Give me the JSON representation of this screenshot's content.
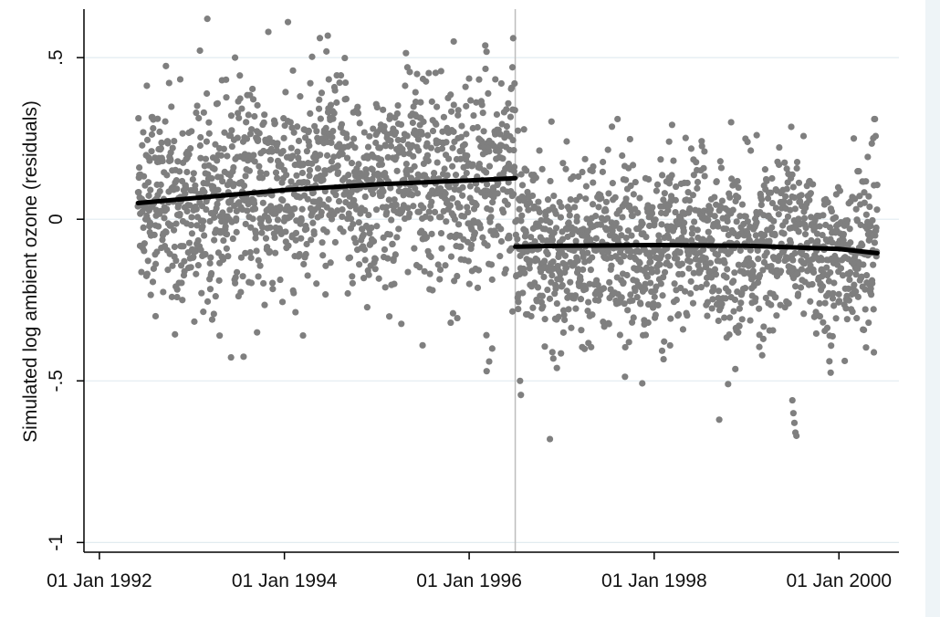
{
  "chart_data": {
    "type": "scatter",
    "title": "",
    "xlabel": "",
    "ylabel": "Simulated log ambient ozone (residuals)",
    "x_type": "date",
    "xlim": [
      "1991-11-01",
      "2000-08-25"
    ],
    "ylim": [
      -1.03,
      0.65
    ],
    "x_ticks": [
      {
        "date": "1992-01-01",
        "label": "01 Jan 1992"
      },
      {
        "date": "1994-01-01",
        "label": "01 Jan 1994"
      },
      {
        "date": "1996-01-01",
        "label": "01 Jan 1996"
      },
      {
        "date": "1998-01-01",
        "label": "01 Jan 1998"
      },
      {
        "date": "2000-01-01",
        "label": "01 Jan 2000"
      }
    ],
    "y_ticks": [
      {
        "value": 0.5,
        "label": ".5"
      },
      {
        "value": 0,
        "label": "0"
      },
      {
        "value": -0.5,
        "label": "-.5"
      },
      {
        "value": -1,
        "label": "-1"
      }
    ],
    "grid": "horizontal",
    "cutoff_date": "1996-07-01",
    "colors": {
      "points": "#7f7f7f",
      "fit": "#000000",
      "grid": "#e2ecf0",
      "cutoff": "#bdbdbd",
      "axis": "#000000"
    },
    "series": [
      {
        "type": "line",
        "points": [
          {
            "x": "1992-06-01",
            "y": 0.05
          },
          {
            "x": "1993-01-01",
            "y": 0.065
          },
          {
            "x": "1994-01-01",
            "y": 0.09
          },
          {
            "x": "1995-01-01",
            "y": 0.108
          },
          {
            "x": "1996-01-01",
            "y": 0.12
          },
          {
            "x": "1996-07-01",
            "y": 0.127
          }
        ]
      },
      {
        "type": "line",
        "points": [
          {
            "x": "1996-07-01",
            "y": -0.085
          },
          {
            "x": "1997-01-01",
            "y": -0.082
          },
          {
            "x": "1998-01-01",
            "y": -0.08
          },
          {
            "x": "1999-01-01",
            "y": -0.082
          },
          {
            "x": "2000-01-01",
            "y": -0.092
          },
          {
            "x": "2000-06-01",
            "y": -0.105
          }
        ]
      },
      {
        "type": "scatter_regime",
        "regimes": [
          {
            "x_start": "1992-06-01",
            "x_end": "1996-06-30",
            "spread": 0.16,
            "density_per_day": 0.95,
            "y_range": [
              -0.47,
              0.62
            ],
            "outliers": [
              {
                "x": "1994-01-15",
                "y": 0.61
              },
              {
                "x": "1995-11-01",
                "y": 0.55
              },
              {
                "x": "1993-06-20",
                "y": 0.5
              },
              {
                "x": "1996-06-20",
                "y": 0.47
              },
              {
                "x": "1993-04-20",
                "y": -0.36
              },
              {
                "x": "1993-09-15",
                "y": -0.35
              },
              {
                "x": "1995-07-01",
                "y": -0.39
              },
              {
                "x": "1995-10-20",
                "y": -0.32
              },
              {
                "x": "1996-03-10",
                "y": -0.47
              },
              {
                "x": "1996-03-20",
                "y": -0.44
              },
              {
                "x": "1996-04-01",
                "y": -0.4
              },
              {
                "x": "1992-08-10",
                "y": -0.3
              }
            ]
          },
          {
            "x_start": "1996-07-02",
            "x_end": "2000-06-01",
            "spread": 0.13,
            "density_per_day": 0.95,
            "y_range": [
              -0.69,
              0.31
            ],
            "outliers": [
              {
                "x": "1996-11-15",
                "y": -0.68
              },
              {
                "x": "1998-09-15",
                "y": -0.62
              },
              {
                "x": "1998-10-20",
                "y": -0.51
              },
              {
                "x": "1999-07-01",
                "y": -0.56
              },
              {
                "x": "1999-07-05",
                "y": -0.6
              },
              {
                "x": "1999-07-09",
                "y": -0.63
              },
              {
                "x": "1999-07-13",
                "y": -0.66
              },
              {
                "x": "1999-07-17",
                "y": -0.67
              },
              {
                "x": "1996-07-20",
                "y": -0.5
              },
              {
                "x": "1998-11-01",
                "y": 0.3
              },
              {
                "x": "1998-03-01",
                "y": 0.24
              },
              {
                "x": "1999-02-10",
                "y": 0.26
              }
            ]
          }
        ]
      }
    ]
  }
}
